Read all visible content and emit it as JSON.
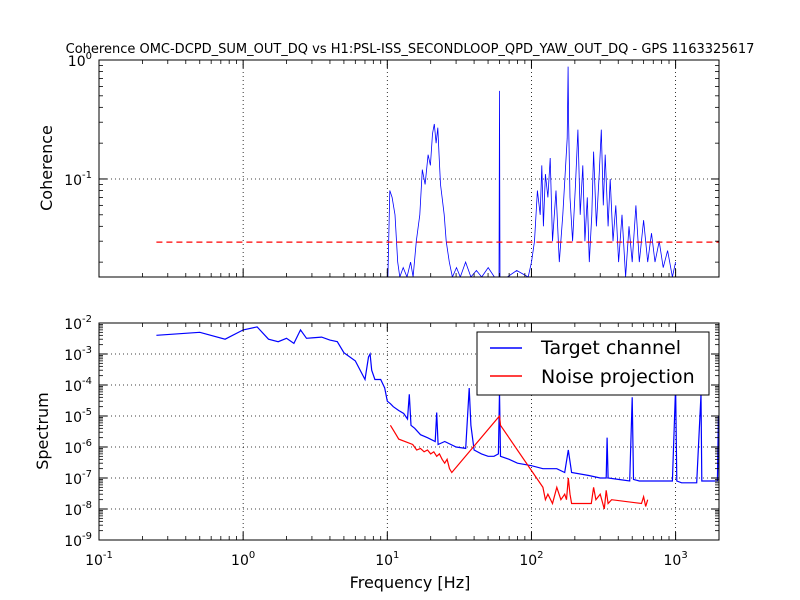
{
  "chart_data": [
    {
      "type": "line",
      "title": "Coherence OMC-DCPD_SUM_OUT_DQ vs H1:PSL-ISS_SECONDLOOP_QPD_YAW_OUT_DQ - GPS 1163325617",
      "xlabel": "",
      "ylabel": "Coherence",
      "xscale": "log",
      "yscale": "log",
      "xlim": [
        0.1,
        2000
      ],
      "ylim": [
        0.015,
        1.0
      ],
      "grid": true,
      "y_ticks": [
        {
          "base": "10",
          "exp": "-1"
        },
        {
          "base": "10",
          "exp": "0"
        }
      ],
      "series": [
        {
          "color": "#0000ff",
          "style": "solid",
          "x": [
            10.1,
            10.4,
            10.8,
            11.3,
            11.8,
            12.2,
            12.9,
            13.7,
            14.5,
            15.1,
            15.9,
            16.8,
            17.5,
            18.3,
            19.2,
            19.9,
            20.6,
            21.2,
            21.8,
            22.4,
            22.9,
            23.4,
            24.0,
            24.8,
            25.6,
            26.9,
            28.3,
            30.2,
            32.1,
            34.9,
            38.0,
            41.5,
            45.2,
            50.1,
            55.3,
            59.5,
            60.0,
            60.5,
            68.0,
            79.0,
            95.0,
            100.0,
            105.0,
            110.0,
            115.0,
            118.0,
            121.0,
            125.0,
            130.0,
            135.0,
            140.0,
            148.0,
            156.0,
            165.0,
            172.0,
            177.0,
            179.5,
            181.0,
            185.0,
            193.0,
            202.0,
            210.0,
            218.0,
            227.0,
            235.0,
            244.0,
            252.0,
            262.0,
            270.0,
            282.0,
            295.0,
            305.0,
            315.0,
            325.0,
            340.0,
            352.0,
            368.0,
            385.0,
            402.0,
            425.0,
            450.0,
            475.0,
            500.0,
            530.0,
            560.0,
            600.0,
            640.0,
            680.0,
            720.0,
            770.0,
            820.0,
            880.0,
            950.0,
            1000.0
          ],
          "y": [
            0.015,
            0.08,
            0.07,
            0.05,
            0.02,
            0.015,
            0.018,
            0.015,
            0.02,
            0.015,
            0.03,
            0.05,
            0.12,
            0.09,
            0.16,
            0.13,
            0.24,
            0.29,
            0.2,
            0.27,
            0.15,
            0.09,
            0.07,
            0.05,
            0.03,
            0.02,
            0.015,
            0.018,
            0.015,
            0.02,
            0.015,
            0.017,
            0.015,
            0.018,
            0.015,
            0.015,
            0.55,
            0.015,
            0.015,
            0.017,
            0.015,
            0.02,
            0.03,
            0.08,
            0.05,
            0.13,
            0.04,
            0.11,
            0.07,
            0.15,
            0.03,
            0.08,
            0.02,
            0.05,
            0.12,
            0.22,
            0.88,
            0.3,
            0.07,
            0.03,
            0.09,
            0.26,
            0.05,
            0.13,
            0.03,
            0.07,
            0.02,
            0.05,
            0.17,
            0.04,
            0.11,
            0.26,
            0.06,
            0.16,
            0.04,
            0.1,
            0.03,
            0.06,
            0.02,
            0.05,
            0.015,
            0.04,
            0.02,
            0.06,
            0.02,
            0.045,
            0.02,
            0.035,
            0.02,
            0.03,
            0.018,
            0.025,
            0.015,
            0.02
          ]
        },
        {
          "color": "#ff0000",
          "style": "dashed",
          "x": [
            0.25,
            2000
          ],
          "y": [
            0.0295,
            0.0295
          ]
        }
      ]
    },
    {
      "type": "line",
      "title": "",
      "xlabel": "Frequency [Hz]",
      "ylabel": "Spectrum",
      "xscale": "log",
      "yscale": "log",
      "xlim": [
        0.1,
        2000
      ],
      "ylim": [
        1e-09,
        0.01
      ],
      "grid": true,
      "legend_position": "top-right",
      "x_ticks": [
        {
          "base": "10",
          "exp": "-1"
        },
        {
          "base": "10",
          "exp": "0"
        },
        {
          "base": "10",
          "exp": "1"
        },
        {
          "base": "10",
          "exp": "2"
        },
        {
          "base": "10",
          "exp": "3"
        }
      ],
      "y_ticks": [
        {
          "base": "10",
          "exp": "-9"
        },
        {
          "base": "10",
          "exp": "-8"
        },
        {
          "base": "10",
          "exp": "-7"
        },
        {
          "base": "10",
          "exp": "-6"
        },
        {
          "base": "10",
          "exp": "-5"
        },
        {
          "base": "10",
          "exp": "-4"
        },
        {
          "base": "10",
          "exp": "-3"
        },
        {
          "base": "10",
          "exp": "-2"
        }
      ],
      "series": [
        {
          "name": "Target channel",
          "color": "#0000ff",
          "x": [
            0.25,
            0.5,
            0.75,
            1.0,
            1.25,
            1.5,
            1.75,
            2.0,
            2.25,
            2.5,
            2.75,
            3.0,
            3.5,
            4.0,
            4.5,
            5.0,
            6.0,
            7.0,
            7.4,
            7.6,
            7.8,
            8.2,
            9.0,
            9.6,
            10.0,
            10.5,
            11.0,
            12.0,
            13.0,
            13.8,
            14.2,
            14.6,
            15.5,
            17.0,
            19.0,
            21.5,
            22.0,
            22.5,
            25.0,
            30.0,
            35.0,
            37.0,
            38.0,
            40.0,
            45.0,
            50.0,
            55.0,
            59.0,
            60.0,
            61.0,
            70.0,
            80.0,
            100.0,
            120.0,
            150.0,
            170.0,
            180.0,
            190.0,
            250.0,
            300.0,
            330.0,
            335.0,
            340.0,
            400.0,
            480.0,
            500.0,
            510.0,
            560.0,
            600.0,
            700.0,
            800.0,
            950.0,
            1000.0,
            1020.0,
            1100.0,
            1400.0,
            1500.0,
            1520.0,
            1600.0,
            1800.0,
            1950.0,
            1980.0,
            2000.0
          ],
          "y": [
            0.004,
            0.005,
            0.003,
            0.006,
            0.0075,
            0.003,
            0.0025,
            0.0032,
            0.0022,
            0.006,
            0.0032,
            0.0033,
            0.0035,
            0.0028,
            0.0025,
            0.0011,
            0.0006,
            0.00015,
            0.0008,
            0.001,
            0.0003,
            0.00015,
            0.00015,
            8e-05,
            3e-05,
            2.5e-05,
            2e-05,
            1.5e-05,
            1.2e-05,
            8e-06,
            5e-05,
            5e-06,
            4e-06,
            2.5e-06,
            2e-06,
            1.5e-06,
            1.3e-05,
            1.2e-06,
            1.5e-06,
            1e-06,
            9e-07,
            8e-05,
            5e-06,
            8e-07,
            6e-07,
            5e-07,
            5e-07,
            6e-07,
            6e-05,
            5e-07,
            4e-07,
            3e-07,
            2.5e-07,
            2e-07,
            2e-07,
            1.5e-07,
            8e-07,
            1.5e-07,
            1.2e-07,
            1e-07,
            1e-07,
            2e-06,
            1e-07,
            9e-08,
            8e-08,
            4e-05,
            9e-08,
            8e-08,
            8e-08,
            8e-08,
            8e-08,
            8e-08,
            9e-05,
            8e-08,
            7e-08,
            7e-08,
            5e-05,
            8e-08,
            8e-08,
            8e-08,
            8e-08,
            1e-05,
            8e-08
          ]
        },
        {
          "name": "Noise projection",
          "color": "#ff0000",
          "x": [
            10.5,
            11.0,
            11.5,
            12.0,
            15.0,
            16.0,
            17.0,
            18.0,
            19.0,
            20.0,
            21.0,
            22.0,
            23.0,
            24.0,
            25.0,
            26.0,
            27.0,
            28.0,
            60.0,
            61.0,
            120.0,
            125.0,
            130.0,
            140.0,
            150.0,
            160.0,
            170.0,
            175.0,
            180.0,
            185.0,
            190.0,
            260.0,
            270.0,
            280.0,
            300.0,
            320.0,
            330.0,
            340.0,
            360.0,
            580.0,
            600.0,
            620.0,
            640.0
          ],
          "y": [
            5e-06,
            3.5e-06,
            2.5e-06,
            1.8e-06,
            1.2e-06,
            8e-07,
            9e-07,
            7e-07,
            8e-07,
            6e-07,
            7e-07,
            5e-07,
            6e-07,
            4e-07,
            3e-07,
            4e-07,
            2e-07,
            1.5e-07,
            1e-05,
            5e-06,
            5e-08,
            2e-08,
            3e-08,
            1.5e-08,
            5e-08,
            2e-08,
            3e-08,
            2e-08,
            1e-07,
            3e-08,
            1.5e-08,
            1.5e-08,
            5e-08,
            2e-08,
            3e-08,
            1e-08,
            4e-08,
            1.5e-08,
            2e-08,
            1.5e-08,
            2.5e-08,
            1.2e-08,
            2e-08
          ]
        }
      ]
    }
  ]
}
